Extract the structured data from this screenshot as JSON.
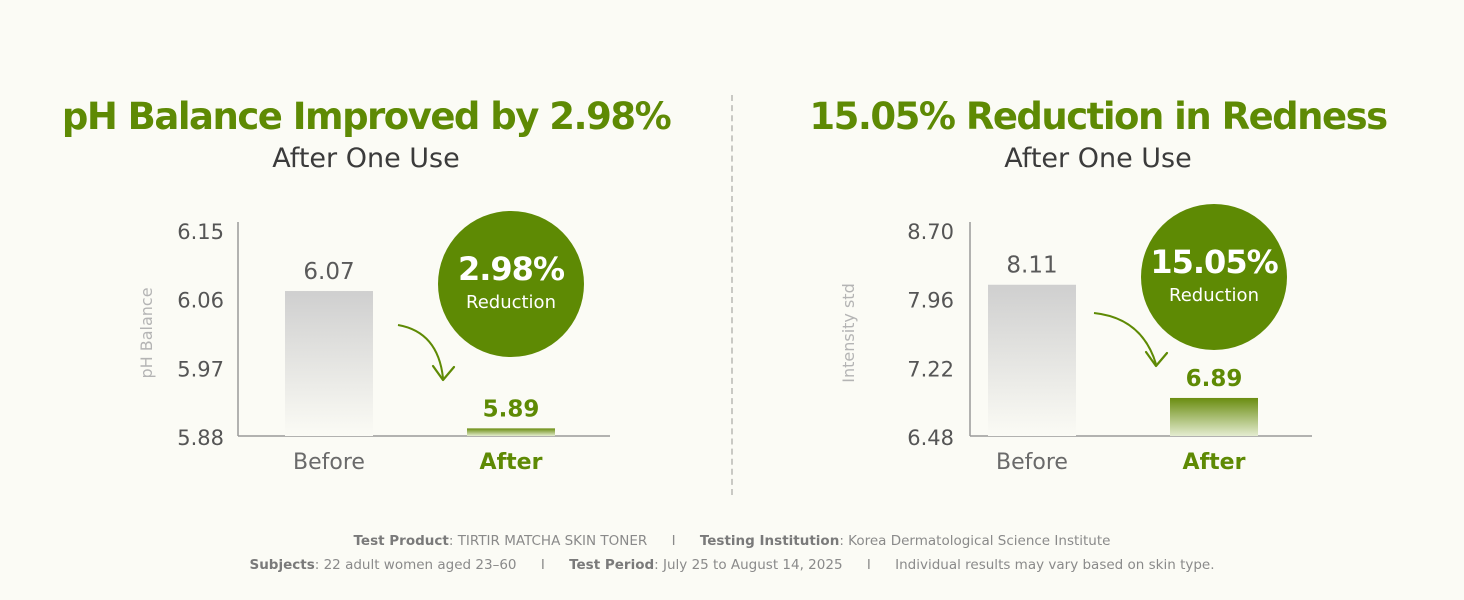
{
  "chart_data": [
    {
      "type": "bar",
      "title": "pH Balance Improved by 2.98%",
      "subtitle": "After One Use",
      "ylabel": "pH Balance",
      "ylim": [
        5.88,
        6.15
      ],
      "y_ticks": [
        "6.15",
        "6.06",
        "5.97",
        "5.88"
      ],
      "categories": [
        "Before",
        "After"
      ],
      "values": [
        6.07,
        5.89
      ],
      "value_labels": [
        "6.07",
        "5.89"
      ],
      "badge": {
        "value": "2.98%",
        "label": "Reduction"
      },
      "colors": {
        "before": "#cfcfcf",
        "after": "#6a8d10"
      }
    },
    {
      "type": "bar",
      "title": "15.05% Reduction in Redness",
      "subtitle": "After One Use",
      "ylabel": "Intensity std",
      "ylim": [
        6.48,
        8.7
      ],
      "y_ticks": [
        "8.70",
        "7.96",
        "7.22",
        "6.48"
      ],
      "categories": [
        "Before",
        "After"
      ],
      "values": [
        8.11,
        6.89
      ],
      "value_labels": [
        "8.11",
        "6.89"
      ],
      "badge": {
        "value": "15.05%",
        "label": "Reduction"
      },
      "colors": {
        "before": "#cfcfcf",
        "after": "#6a8d10"
      }
    }
  ],
  "footer": {
    "line1": [
      {
        "key": "Test Product",
        "value": "TIRTIR MATCHA SKIN TONER"
      },
      {
        "key": "Testing Institution",
        "value": "Korea Dermatological Science Institute"
      }
    ],
    "line2": [
      {
        "key": "Subjects",
        "value": "22 adult women aged 23–60"
      },
      {
        "key": "Test Period",
        "value": "July 25 to August 14, 2025"
      }
    ],
    "note": "Individual results may vary based on skin type.",
    "separator": "I"
  }
}
